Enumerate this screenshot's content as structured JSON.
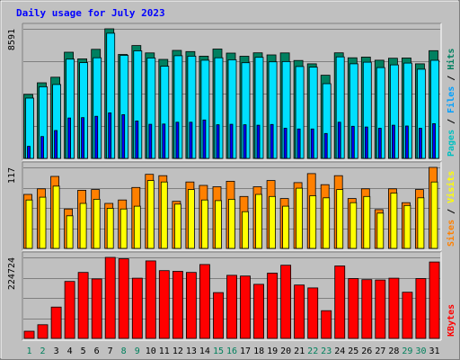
{
  "chart_data": {
    "type": "bar",
    "title": "Daily usage for July 2023",
    "days": [
      1,
      2,
      3,
      4,
      5,
      6,
      7,
      8,
      9,
      10,
      11,
      12,
      13,
      14,
      15,
      16,
      17,
      18,
      19,
      20,
      21,
      22,
      23,
      24,
      25,
      26,
      27,
      28,
      29,
      30,
      31
    ],
    "weekend_days": [
      1,
      2,
      8,
      9,
      15,
      16,
      22,
      23,
      29,
      30
    ],
    "day_label_colors": {
      "weekday": "#000000",
      "weekend": "#00805c"
    },
    "panels": [
      {
        "id": "hits",
        "max_label": "8591",
        "ymax": 8591,
        "right_label": [
          {
            "text": "Pages",
            "color": "#00c0c0"
          },
          {
            "text": " / ",
            "color": "#000000"
          },
          {
            "text": "Files",
            "color": "#00a0ff"
          },
          {
            "text": " / ",
            "color": "#000000"
          },
          {
            "text": "Hits",
            "color": "#008060"
          }
        ],
        "series": [
          {
            "key": "hits",
            "color": "#008060",
            "values": [
              4240,
              5010,
              5380,
              7040,
              6600,
              7230,
              8591,
              6890,
              7480,
              6990,
              6560,
              7160,
              7080,
              6780,
              7250,
              6980,
              6770,
              7000,
              6860,
              6990,
              6490,
              6270,
              5510,
              7000,
              6670,
              6720,
              6510,
              6640,
              6660,
              6270,
              7140
            ]
          },
          {
            "key": "files",
            "color": "#00e0ff",
            "values": [
              4000,
              4750,
              4900,
              6580,
              6350,
              6670,
              8300,
              6830,
              7130,
              6660,
              6110,
              6810,
              6780,
              6510,
              6670,
              6540,
              6340,
              6700,
              6400,
              6420,
              6090,
              6050,
              4950,
              6730,
              6270,
              6380,
              6020,
              6200,
              6320,
              5910,
              6500
            ]
          },
          {
            "key": "pages",
            "color": "#0000ff",
            "values": [
              800,
              1450,
              1850,
              2680,
              2700,
              2790,
              3020,
              2900,
              2480,
              2260,
              2280,
              2400,
              2400,
              2550,
              2230,
              2260,
              2230,
              2200,
              2250,
              2000,
              1950,
              1950,
              1650,
              2400,
              2130,
              2080,
              2000,
              2200,
              2150,
              2000,
              2300
            ]
          }
        ]
      },
      {
        "id": "visits",
        "max_label": "117",
        "ymax": 117,
        "right_label": [
          {
            "text": "Sites",
            "color": "#ff8000"
          },
          {
            "text": " / ",
            "color": "#000000"
          },
          {
            "text": "Visits",
            "color": "#ffff00"
          }
        ],
        "series": [
          {
            "key": "visits",
            "color": "#ff8000",
            "values": [
              78,
              86,
              104,
              57,
              84,
              85,
              65,
              70,
              88,
              107,
              105,
              68,
              96,
              91,
              89,
              97,
              75,
              89,
              98,
              72,
              95,
              108,
              92,
              105,
              72,
              86,
              56,
              86,
              66,
              85,
              117
            ]
          },
          {
            "key": "sites",
            "color": "#ffff00",
            "values": [
              70,
              74,
              90,
              47,
              65,
              71,
              58,
              57,
              61,
              98,
              96,
              64,
              85,
              70,
              69,
              71,
              53,
              78,
              75,
              61,
              87,
              76,
              73,
              85,
              66,
              75,
              51,
              80,
              62,
              73,
              96
            ]
          }
        ]
      },
      {
        "id": "kbytes",
        "max_label": "224724",
        "ymax": 224724,
        "right_label": [
          {
            "text": "KBytes",
            "color": "#ff0000"
          }
        ],
        "series": [
          {
            "key": "kbytes",
            "color": "#ff0000",
            "values": [
              20000,
              38000,
              87000,
              158000,
              183000,
              165000,
              224724,
              221000,
              167000,
              215000,
              188000,
              186000,
              183000,
              205000,
              127000,
              175000,
              173000,
              150000,
              181000,
              203000,
              148000,
              140000,
              77000,
              201000,
              166000,
              163000,
              162000,
              167000,
              128000,
              166000,
              212000
            ]
          }
        ]
      }
    ]
  }
}
